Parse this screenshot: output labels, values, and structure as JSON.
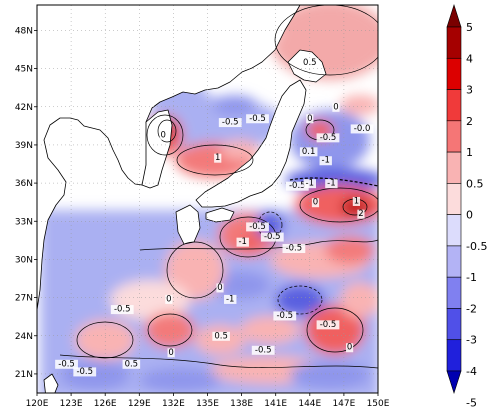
{
  "map": {
    "lon_range": [
      120,
      150
    ],
    "lat_range": [
      19.5,
      50
    ],
    "x_ticks": [
      "120E",
      "123E",
      "126E",
      "129E",
      "132E",
      "135E",
      "138E",
      "141E",
      "144E",
      "147E",
      "150E"
    ],
    "y_ticks": [
      "21N",
      "24N",
      "27N",
      "30N",
      "33N",
      "36N",
      "39N",
      "42N",
      "45N",
      "48N"
    ],
    "contour_labels": [
      {
        "text": "0.5",
        "lon": 144.0,
        "lat": 45.3
      },
      {
        "text": "0",
        "lon": 146.3,
        "lat": 41.8
      },
      {
        "text": "-0.5",
        "lon": 137.0,
        "lat": 40.6
      },
      {
        "text": "-0.5",
        "lon": 139.4,
        "lat": 40.9
      },
      {
        "text": "0",
        "lon": 144.0,
        "lat": 40.9
      },
      {
        "text": "-0.0",
        "lon": 148.6,
        "lat": 40.1
      },
      {
        "text": "-0.5",
        "lon": 145.6,
        "lat": 39.4
      },
      {
        "text": "0",
        "lon": 131.1,
        "lat": 39.6
      },
      {
        "text": "1",
        "lon": 135.9,
        "lat": 37.8
      },
      {
        "text": "0.1",
        "lon": 143.9,
        "lat": 38.3
      },
      {
        "text": "-1",
        "lon": 145.4,
        "lat": 37.6
      },
      {
        "text": "-0.5",
        "lon": 142.9,
        "lat": 35.6
      },
      {
        "text": "-1",
        "lon": 144.0,
        "lat": 35.8
      },
      {
        "text": "-1",
        "lon": 145.9,
        "lat": 35.8
      },
      {
        "text": "0",
        "lon": 144.5,
        "lat": 34.3
      },
      {
        "text": "1",
        "lon": 148.1,
        "lat": 34.4
      },
      {
        "text": "2",
        "lon": 148.5,
        "lat": 33.4
      },
      {
        "text": "-0.5",
        "lon": 139.4,
        "lat": 32.4
      },
      {
        "text": "-1",
        "lon": 138.1,
        "lat": 31.2
      },
      {
        "text": "-0.5",
        "lon": 140.7,
        "lat": 31.6
      },
      {
        "text": "-0.5",
        "lon": 142.6,
        "lat": 30.7
      },
      {
        "text": "0",
        "lon": 136.1,
        "lat": 27.6
      },
      {
        "text": "-1",
        "lon": 137.0,
        "lat": 26.7
      },
      {
        "text": "0",
        "lon": 131.6,
        "lat": 26.7
      },
      {
        "text": "-0.5",
        "lon": 127.5,
        "lat": 25.9
      },
      {
        "text": "-0.5",
        "lon": 141.8,
        "lat": 25.4
      },
      {
        "text": "-0.5",
        "lon": 145.6,
        "lat": 24.7
      },
      {
        "text": "0.5",
        "lon": 136.2,
        "lat": 23.8
      },
      {
        "text": "-0.5",
        "lon": 139.9,
        "lat": 22.7
      },
      {
        "text": "0",
        "lon": 131.8,
        "lat": 22.5
      },
      {
        "text": "0",
        "lon": 147.5,
        "lat": 22.9
      },
      {
        "text": "-0.5",
        "lon": 122.6,
        "lat": 21.6
      },
      {
        "text": "-0.5",
        "lon": 124.2,
        "lat": 21.0
      },
      {
        "text": "0.5",
        "lon": 128.3,
        "lat": 21.6
      }
    ]
  },
  "colorbar": {
    "labels": [
      "5",
      "4",
      "3",
      "2",
      "1",
      "0.5",
      "0",
      "-0.5",
      "-1",
      "-2",
      "-3",
      "-4",
      "-5"
    ],
    "colors": [
      "#7a0000",
      "#a50000",
      "#dc0000",
      "#f03a3a",
      "#f57676",
      "#f9b3b3",
      "#fcdcdc",
      "#dcdcfc",
      "#b3b3f5",
      "#8080f0",
      "#5050e8",
      "#2020dc",
      "#0000b0"
    ]
  }
}
